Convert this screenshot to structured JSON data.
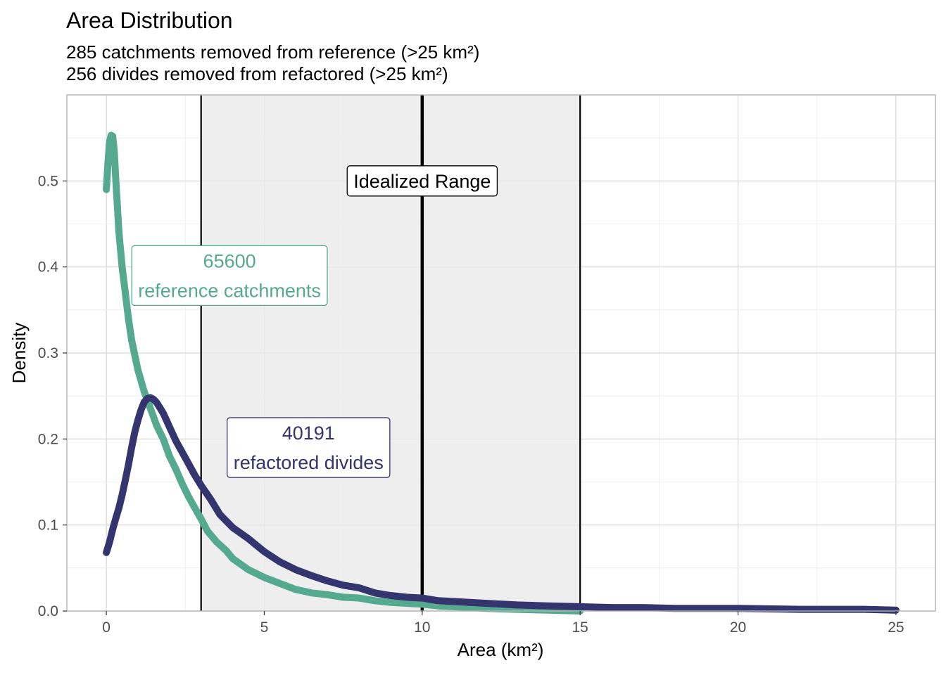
{
  "chart_data": {
    "type": "line",
    "title": "Area Distribution",
    "subtitle_lines": [
      "285 catchments removed from reference (>25 km²)",
      "256 divides removed from refactored (>25 km²)"
    ],
    "xlabel": "Area (km²)",
    "ylabel": "Density",
    "xlim": [
      -1.25,
      26.25
    ],
    "ylim": [
      0,
      0.6
    ],
    "x_ticks": [
      0,
      5,
      10,
      15,
      20,
      25
    ],
    "y_ticks": [
      0.0,
      0.1,
      0.2,
      0.3,
      0.4,
      0.5
    ],
    "x_tick_labels": [
      "0",
      "5",
      "10",
      "15",
      "20",
      "25"
    ],
    "y_tick_labels": [
      "0.0",
      "0.1",
      "0.2",
      "0.3",
      "0.4",
      "0.5"
    ],
    "grid": true,
    "shaded_range": {
      "from": 3,
      "to": 15,
      "color": "#ebebeb"
    },
    "vlines": [
      {
        "x": 3,
        "weight": "normal"
      },
      {
        "x": 10,
        "weight": "bold"
      },
      {
        "x": 15,
        "weight": "normal"
      }
    ],
    "range_label": {
      "text": "Idealized Range",
      "x": 10,
      "y": 0.5
    },
    "series": [
      {
        "id": "reference",
        "color": "#55a98f",
        "label_count": "65600",
        "label_text": "reference catchments",
        "label_pos": {
          "x": 3.9,
          "y": 0.39
        },
        "points": [
          [
            0.0,
            0.49
          ],
          [
            0.05,
            0.52
          ],
          [
            0.1,
            0.545
          ],
          [
            0.15,
            0.553
          ],
          [
            0.2,
            0.552
          ],
          [
            0.25,
            0.535
          ],
          [
            0.3,
            0.5
          ],
          [
            0.4,
            0.44
          ],
          [
            0.5,
            0.4
          ],
          [
            0.6,
            0.37
          ],
          [
            0.7,
            0.34
          ],
          [
            0.8,
            0.315
          ],
          [
            1.0,
            0.28
          ],
          [
            1.2,
            0.255
          ],
          [
            1.4,
            0.235
          ],
          [
            1.6,
            0.215
          ],
          [
            1.8,
            0.2
          ],
          [
            2.0,
            0.18
          ],
          [
            2.2,
            0.165
          ],
          [
            2.4,
            0.148
          ],
          [
            2.6,
            0.133
          ],
          [
            2.8,
            0.12
          ],
          [
            3.0,
            0.107
          ],
          [
            3.2,
            0.093
          ],
          [
            3.5,
            0.08
          ],
          [
            3.8,
            0.07
          ],
          [
            4.0,
            0.061
          ],
          [
            4.5,
            0.048
          ],
          [
            5.0,
            0.039
          ],
          [
            5.5,
            0.032
          ],
          [
            6.0,
            0.025
          ],
          [
            6.5,
            0.021
          ],
          [
            7.0,
            0.019
          ],
          [
            7.5,
            0.016
          ],
          [
            8.0,
            0.015
          ],
          [
            8.5,
            0.012
          ],
          [
            9.0,
            0.01
          ],
          [
            9.5,
            0.009
          ],
          [
            10.0,
            0.008
          ],
          [
            10.5,
            0.006
          ],
          [
            11.0,
            0.005
          ],
          [
            12.0,
            0.003
          ],
          [
            13.0,
            0.002
          ],
          [
            14.0,
            0.001
          ],
          [
            15.0,
            0.0
          ]
        ]
      },
      {
        "id": "refactored",
        "color": "#34346f",
        "label_count": "40191",
        "label_text": "refactored divides",
        "label_pos": {
          "x": 6.4,
          "y": 0.19
        },
        "points": [
          [
            0.0,
            0.068
          ],
          [
            0.1,
            0.08
          ],
          [
            0.2,
            0.095
          ],
          [
            0.3,
            0.108
          ],
          [
            0.4,
            0.12
          ],
          [
            0.5,
            0.135
          ],
          [
            0.6,
            0.152
          ],
          [
            0.7,
            0.17
          ],
          [
            0.8,
            0.19
          ],
          [
            0.9,
            0.208
          ],
          [
            1.0,
            0.222
          ],
          [
            1.1,
            0.234
          ],
          [
            1.2,
            0.243
          ],
          [
            1.3,
            0.247
          ],
          [
            1.4,
            0.248
          ],
          [
            1.5,
            0.246
          ],
          [
            1.6,
            0.242
          ],
          [
            1.8,
            0.23
          ],
          [
            2.0,
            0.214
          ],
          [
            2.2,
            0.198
          ],
          [
            2.5,
            0.178
          ],
          [
            2.8,
            0.158
          ],
          [
            3.0,
            0.146
          ],
          [
            3.3,
            0.13
          ],
          [
            3.6,
            0.112
          ],
          [
            4.0,
            0.097
          ],
          [
            4.5,
            0.084
          ],
          [
            5.0,
            0.069
          ],
          [
            5.5,
            0.057
          ],
          [
            6.0,
            0.048
          ],
          [
            6.5,
            0.041
          ],
          [
            7.0,
            0.035
          ],
          [
            7.5,
            0.03
          ],
          [
            8.0,
            0.027
          ],
          [
            8.5,
            0.021
          ],
          [
            9.0,
            0.018
          ],
          [
            9.5,
            0.016
          ],
          [
            10.0,
            0.015
          ],
          [
            10.5,
            0.012
          ],
          [
            11.0,
            0.011
          ],
          [
            12.0,
            0.009
          ],
          [
            13.0,
            0.007
          ],
          [
            14.0,
            0.006
          ],
          [
            15.0,
            0.005
          ],
          [
            16.0,
            0.004
          ],
          [
            17.0,
            0.004
          ],
          [
            18.0,
            0.003
          ],
          [
            20.0,
            0.003
          ],
          [
            22.0,
            0.002
          ],
          [
            24.0,
            0.002
          ],
          [
            25.0,
            0.001
          ]
        ]
      }
    ]
  }
}
